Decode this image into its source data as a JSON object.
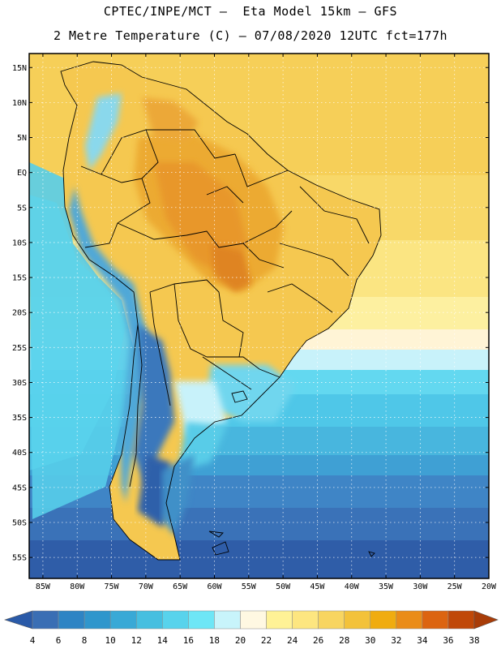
{
  "header": {
    "line1": "CPTEC/INPE/MCT –  Eta Model 15km – GFS",
    "line2": "2 Metre Temperature (C) – 07/08/2020 12UTC fct=177h"
  },
  "map": {
    "lat_labels": [
      "15N",
      "10N",
      "5N",
      "EQ",
      "5S",
      "10S",
      "15S",
      "20S",
      "25S",
      "30S",
      "35S",
      "40S",
      "45S",
      "50S",
      "55S"
    ],
    "lon_labels": [
      "85W",
      "80W",
      "75W",
      "70W",
      "65W",
      "60W",
      "55W",
      "50W",
      "45W",
      "40W",
      "35W",
      "30W",
      "25W",
      "20W"
    ],
    "lat_range": [
      17,
      -58
    ],
    "lon_range": [
      -87,
      -20
    ]
  },
  "colorbar": {
    "levels": [
      "4",
      "6",
      "8",
      "10",
      "12",
      "14",
      "16",
      "18",
      "20",
      "22",
      "24",
      "26",
      "28",
      "30",
      "32",
      "34",
      "36",
      "38"
    ],
    "colors": [
      "#3a6eb4",
      "#2e84c4",
      "#2f96cc",
      "#39a9d6",
      "#46bfe0",
      "#58d3ec",
      "#6ee6f6",
      "#c8f4fb",
      "#fff8e2",
      "#fff296",
      "#fde680",
      "#f8d560",
      "#f3c23a",
      "#f0ac10",
      "#ea8c18",
      "#dc6410",
      "#c04808"
    ],
    "low_color": "#2a5aa8",
    "high_color": "#a83c08"
  }
}
